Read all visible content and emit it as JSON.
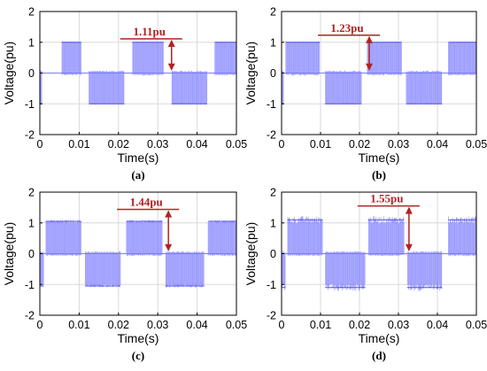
{
  "chart_data": [
    {
      "type": "line",
      "caption": "(a)",
      "xlabel": "Time(s)",
      "ylabel": "Voltage(pu)",
      "xlim": [
        0,
        0.05
      ],
      "ylim": [
        -2,
        2
      ],
      "xticks": [
        "0",
        "0.01",
        "0.02",
        "0.03",
        "0.04",
        "0.05"
      ],
      "yticks": [
        "-2",
        "-1",
        "0",
        "1",
        "2"
      ],
      "grid": true,
      "series": [
        {
          "color": "#7b7bff",
          "amplitude": 1.0,
          "noise": 0.02,
          "segments": [
            [
              0,
              0.0005,
              -1
            ],
            [
              0.0055,
              0.0105,
              1
            ],
            [
              0.0125,
              0.0215,
              -1
            ],
            [
              0.0235,
              0.0315,
              1
            ],
            [
              0.0335,
              0.0425,
              -1
            ],
            [
              0.0445,
              0.05,
              1
            ]
          ]
        }
      ],
      "annotation": {
        "text": "1.11pu",
        "x": 0.0335,
        "top": 1.11,
        "bottom": 0.05
      }
    },
    {
      "type": "line",
      "caption": "(b)",
      "xlabel": "Time(s)",
      "ylabel": "Voltage(pu)",
      "xlim": [
        0,
        0.05
      ],
      "ylim": [
        -2,
        2
      ],
      "xticks": [
        "0",
        "0.01",
        "0.02",
        "0.03",
        "0.04",
        "0.05"
      ],
      "yticks": [
        "-2",
        "-1",
        "0",
        "1",
        "2"
      ],
      "grid": true,
      "series": [
        {
          "color": "#7b7bff",
          "amplitude": 1.0,
          "noise": 0.02,
          "segments": [
            [
              0,
              0.0005,
              -1
            ],
            [
              0.001,
              0.0098,
              1
            ],
            [
              0.0112,
              0.0205,
              -1
            ],
            [
              0.022,
              0.0308,
              1
            ],
            [
              0.032,
              0.0412,
              -1
            ],
            [
              0.0428,
              0.05,
              1
            ]
          ]
        }
      ],
      "annotation": {
        "text": "1.23pu",
        "x": 0.0225,
        "top": 1.23,
        "bottom": 0.05
      }
    },
    {
      "type": "line",
      "caption": "(c)",
      "xlabel": "Time(s)",
      "ylabel": "Voltage(pu)",
      "xlim": [
        0,
        0.05
      ],
      "ylim": [
        -2,
        2
      ],
      "xticks": [
        "0",
        "0.01",
        "0.02",
        "0.03",
        "0.04",
        "0.05"
      ],
      "yticks": [
        "-2",
        "-1",
        "0",
        "1",
        "2"
      ],
      "grid": true,
      "series": [
        {
          "color": "#7b7bff",
          "amplitude": 1.05,
          "noise": 0.05,
          "segments": [
            [
              0,
              0.001,
              -1
            ],
            [
              0.0015,
              0.0105,
              1
            ],
            [
              0.0115,
              0.0205,
              -1
            ],
            [
              0.022,
              0.0312,
              1
            ],
            [
              0.032,
              0.0418,
              -1
            ],
            [
              0.0428,
              0.05,
              1
            ]
          ]
        }
      ],
      "annotation": {
        "text": "1.44pu",
        "x": 0.0327,
        "top": 1.44,
        "bottom": 0.05
      }
    },
    {
      "type": "line",
      "caption": "(d)",
      "xlabel": "Time(s)",
      "ylabel": "Voltage(pu)",
      "xlim": [
        0,
        0.05
      ],
      "ylim": [
        -2,
        2
      ],
      "xticks": [
        "0",
        "0.01",
        "0.02",
        "0.03",
        "0.04",
        "0.05"
      ],
      "yticks": [
        "-2",
        "-1",
        "0",
        "1",
        "2"
      ],
      "grid": true,
      "series": [
        {
          "color": "#7b7bff",
          "amplitude": 1.1,
          "noise": 0.12,
          "segments": [
            [
              0,
              0.001,
              -1
            ],
            [
              0.0015,
              0.0105,
              1
            ],
            [
              0.0112,
              0.0215,
              -1
            ],
            [
              0.0222,
              0.0315,
              1
            ],
            [
              0.0322,
              0.0412,
              -1
            ],
            [
              0.0428,
              0.05,
              1
            ]
          ]
        }
      ],
      "annotation": {
        "text": "1.55pu",
        "x": 0.0327,
        "top": 1.55,
        "bottom": 0.05
      }
    }
  ]
}
